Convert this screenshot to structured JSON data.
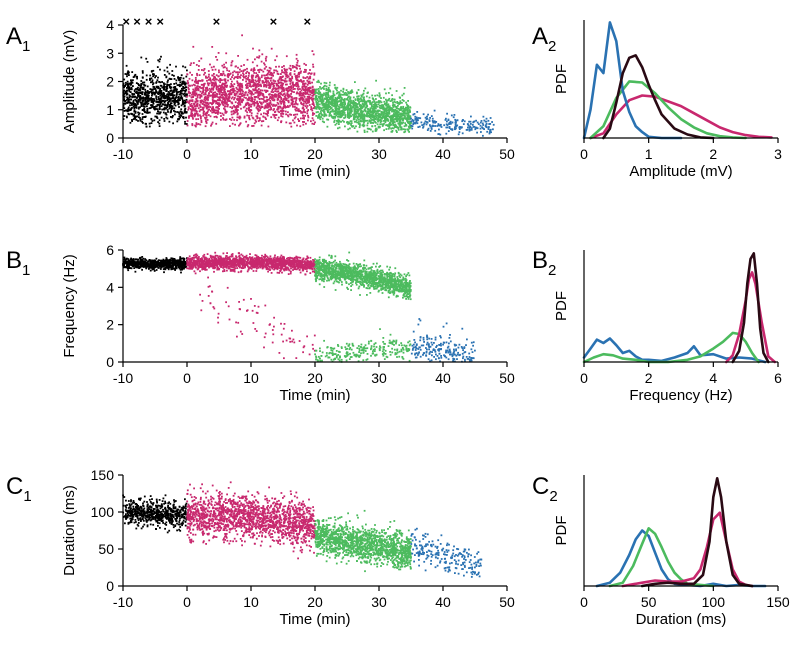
{
  "colors": {
    "baseline": "#000000",
    "epoch1": "#c8286e",
    "epoch2": "#4cbb5e",
    "epoch3": "#2a72b2",
    "pdf_dark": "#2a0a14"
  },
  "chart_data": [
    {
      "id": "A1",
      "type": "scatter",
      "panel_label": "A",
      "panel_sub": "1",
      "xlabel": "Time (min)",
      "ylabel": "Amplitude (mV)",
      "xlim": [
        -10,
        50
      ],
      "ylim": [
        0,
        4
      ],
      "xticks": [
        -10,
        0,
        10,
        20,
        30,
        40,
        50
      ],
      "xtick_labels": [
        "-10",
        "0",
        "10",
        "20",
        "30",
        "40",
        "50"
      ],
      "yticks": [
        0,
        1,
        2,
        3,
        4
      ],
      "ytick_labels": [
        "0",
        "1",
        "2",
        "3",
        "4"
      ],
      "series": [
        {
          "name": "baseline",
          "color": "baseline",
          "t": [
            -10,
            0
          ],
          "count": 900,
          "centre": [
            [
              -10,
              1.45
            ],
            [
              0,
              1.45
            ]
          ],
          "spread": 0.45,
          "range": [
            0.4,
            4.0
          ]
        },
        {
          "name": "epoch1",
          "color": "epoch1",
          "t": [
            0,
            20
          ],
          "count": 1900,
          "centre": [
            [
              0,
              1.3
            ],
            [
              6,
              1.55
            ],
            [
              12,
              1.6
            ],
            [
              20,
              1.55
            ]
          ],
          "spread": 0.55,
          "range": [
            0.4,
            4.0
          ]
        },
        {
          "name": "epoch2",
          "color": "epoch2",
          "t": [
            20,
            35
          ],
          "count": 1500,
          "centre": [
            [
              20,
              1.3
            ],
            [
              27,
              0.95
            ],
            [
              35,
              0.7
            ]
          ],
          "spread": 0.32,
          "range": [
            0.2,
            3.2
          ]
        },
        {
          "name": "epoch3",
          "color": "epoch3",
          "t": [
            35,
            48
          ],
          "count": 220,
          "centre": [
            [
              35,
              0.6
            ],
            [
              40,
              0.45
            ],
            [
              48,
              0.35
            ]
          ],
          "spread": 0.18,
          "range": [
            0.05,
            3.1
          ]
        }
      ],
      "markers": {
        "symbol": "×",
        "y": 4.1,
        "x": [
          -9.5,
          -7.8,
          -6.0,
          -4.2,
          4.6,
          13.5,
          18.8
        ]
      }
    },
    {
      "id": "B1",
      "type": "scatter",
      "panel_label": "B",
      "panel_sub": "1",
      "xlabel": "Time (min)",
      "ylabel": "Frequency (Hz)",
      "xlim": [
        -10,
        50
      ],
      "ylim": [
        0,
        6
      ],
      "xticks": [
        -10,
        0,
        10,
        20,
        30,
        40,
        50
      ],
      "xtick_labels": [
        "-10",
        "0",
        "10",
        "20",
        "30",
        "40",
        "50"
      ],
      "yticks": [
        0,
        2,
        4,
        6
      ],
      "ytick_labels": [
        "0",
        "2",
        "4",
        "6"
      ],
      "series": [
        {
          "name": "baseline",
          "color": "baseline",
          "t": [
            -10,
            0
          ],
          "count": 700,
          "centre": [
            [
              -10,
              5.25
            ],
            [
              0,
              5.25
            ]
          ],
          "spread": 0.14,
          "range": [
            2.3,
            5.9
          ]
        },
        {
          "name": "epoch1",
          "color": "epoch1",
          "t": [
            0,
            20
          ],
          "count": 1500,
          "centre": [
            [
              0,
              5.3
            ],
            [
              10,
              5.35
            ],
            [
              20,
              5.2
            ]
          ],
          "spread": 0.18,
          "range": [
            4.0,
            6.0
          ]
        },
        {
          "name": "epoch1-low",
          "color": "epoch1",
          "t": [
            2,
            20
          ],
          "count": 80,
          "centre": [
            [
              2,
              4.0
            ],
            [
              10,
              2.2
            ],
            [
              20,
              0.6
            ]
          ],
          "spread": 0.7,
          "range": [
            0.2,
            5.0
          ]
        },
        {
          "name": "epoch2",
          "color": "epoch2",
          "t": [
            20,
            35
          ],
          "count": 1300,
          "centre": [
            [
              20,
              5.0
            ],
            [
              28,
              4.6
            ],
            [
              35,
              3.9
            ]
          ],
          "spread": 0.3,
          "range": [
            3.0,
            6.0
          ]
        },
        {
          "name": "epoch2-low",
          "color": "epoch2",
          "t": [
            20,
            35
          ],
          "count": 250,
          "centre": [
            [
              20,
              0.3
            ],
            [
              28,
              0.55
            ],
            [
              35,
              0.8
            ]
          ],
          "spread": 0.3,
          "range": [
            0.0,
            2.5
          ]
        },
        {
          "name": "epoch3",
          "color": "epoch3",
          "t": [
            35,
            45
          ],
          "count": 220,
          "centre": [
            [
              35,
              0.9
            ],
            [
              40,
              0.6
            ],
            [
              45,
              0.2
            ]
          ],
          "spread": 0.45,
          "range": [
            0.0,
            6.0
          ]
        }
      ]
    },
    {
      "id": "C1",
      "type": "scatter",
      "panel_label": "C",
      "panel_sub": "1",
      "xlabel": "Time (min)",
      "ylabel": "Duration (ms)",
      "xlim": [
        -10,
        50
      ],
      "ylim": [
        0,
        150
      ],
      "xticks": [
        -10,
        0,
        10,
        20,
        30,
        40,
        50
      ],
      "xtick_labels": [
        "-10",
        "0",
        "10",
        "20",
        "30",
        "40",
        "50"
      ],
      "yticks": [
        0,
        50,
        100,
        150
      ],
      "ytick_labels": [
        "0",
        "50",
        "100",
        "150"
      ],
      "series": [
        {
          "name": "baseline",
          "color": "baseline",
          "t": [
            -10,
            0
          ],
          "count": 600,
          "centre": [
            [
              -10,
              100
            ],
            [
              0,
              95
            ]
          ],
          "spread": 8,
          "range": [
            15,
            125
          ]
        },
        {
          "name": "epoch1",
          "color": "epoch1",
          "t": [
            0,
            20
          ],
          "count": 1600,
          "centre": [
            [
              0,
              95
            ],
            [
              10,
              95
            ],
            [
              20,
              80
            ]
          ],
          "spread": 15,
          "range": [
            30,
            148
          ]
        },
        {
          "name": "epoch2",
          "color": "epoch2",
          "t": [
            20,
            35
          ],
          "count": 1400,
          "centre": [
            [
              20,
              68
            ],
            [
              28,
              55
            ],
            [
              35,
              45
            ]
          ],
          "spread": 12,
          "range": [
            20,
            148
          ]
        },
        {
          "name": "epoch3",
          "color": "epoch3",
          "t": [
            35,
            46
          ],
          "count": 220,
          "centre": [
            [
              35,
              55
            ],
            [
              40,
              40
            ],
            [
              46,
              25
            ]
          ],
          "spread": 12,
          "range": [
            10,
            115
          ]
        }
      ]
    },
    {
      "id": "A2",
      "type": "line",
      "panel_label": "A",
      "panel_sub": "2",
      "xlabel": "Amplitude (mV)",
      "ylabel": "PDF",
      "xlim": [
        0,
        3
      ],
      "ylim": [
        0,
        1
      ],
      "xticks": [
        0,
        1,
        2,
        3
      ],
      "xtick_labels": [
        "0",
        "1",
        "2",
        "3"
      ],
      "series": [
        {
          "name": "epoch1",
          "color": "epoch1",
          "x": [
            0.1,
            0.3,
            0.5,
            0.7,
            0.9,
            1.1,
            1.3,
            1.5,
            1.7,
            1.9,
            2.1,
            2.3,
            2.5,
            2.7,
            2.9
          ],
          "y": [
            0.0,
            0.04,
            0.2,
            0.32,
            0.36,
            0.35,
            0.31,
            0.27,
            0.21,
            0.15,
            0.09,
            0.05,
            0.025,
            0.01,
            0.005
          ]
        },
        {
          "name": "epoch2",
          "color": "epoch2",
          "x": [
            0.1,
            0.3,
            0.5,
            0.7,
            0.9,
            1.1,
            1.3,
            1.5,
            1.7,
            1.9,
            2.1,
            2.3,
            2.5
          ],
          "y": [
            0.0,
            0.1,
            0.34,
            0.48,
            0.47,
            0.38,
            0.26,
            0.16,
            0.09,
            0.04,
            0.015,
            0.005,
            0.0
          ]
        },
        {
          "name": "epoch3",
          "color": "epoch3",
          "x": [
            0.0,
            0.1,
            0.2,
            0.3,
            0.4,
            0.5,
            0.6,
            0.7,
            0.8,
            0.9,
            1.0,
            1.2,
            1.5
          ],
          "y": [
            0.0,
            0.24,
            0.62,
            0.55,
            0.98,
            0.82,
            0.4,
            0.22,
            0.1,
            0.05,
            0.01,
            0.0,
            0.0
          ]
        },
        {
          "name": "baseline",
          "color": "pdf_dark",
          "x": [
            0.3,
            0.4,
            0.5,
            0.6,
            0.7,
            0.8,
            0.9,
            1.0,
            1.1,
            1.2,
            1.4,
            1.6,
            1.8,
            2.0
          ],
          "y": [
            0.0,
            0.08,
            0.3,
            0.55,
            0.68,
            0.7,
            0.6,
            0.45,
            0.32,
            0.2,
            0.08,
            0.03,
            0.005,
            0.0
          ]
        }
      ]
    },
    {
      "id": "B2",
      "type": "line",
      "panel_label": "B",
      "panel_sub": "2",
      "xlabel": "Frequency (Hz)",
      "ylabel": "PDF",
      "xlim": [
        0,
        6
      ],
      "ylim": [
        0,
        1
      ],
      "xticks": [
        0,
        2,
        4,
        6
      ],
      "xtick_labels": [
        "0",
        "2",
        "4",
        "6"
      ],
      "series": [
        {
          "name": "epoch3",
          "color": "epoch3",
          "x": [
            0.0,
            0.2,
            0.4,
            0.6,
            0.8,
            1.0,
            1.2,
            1.4,
            1.6,
            1.8,
            2.0,
            2.4,
            2.8,
            3.2,
            3.4,
            3.6,
            4.0,
            4.4,
            4.8,
            5.2,
            5.6
          ],
          "y": [
            0.04,
            0.12,
            0.2,
            0.17,
            0.21,
            0.15,
            0.08,
            0.1,
            0.05,
            0.02,
            0.02,
            0.01,
            0.04,
            0.08,
            0.14,
            0.06,
            0.07,
            0.03,
            0.04,
            0.03,
            0.0
          ]
        },
        {
          "name": "epoch2",
          "color": "epoch2",
          "x": [
            0.0,
            0.3,
            0.6,
            0.9,
            1.2,
            1.6,
            2.0,
            2.6,
            3.2,
            3.6,
            4.0,
            4.3,
            4.6,
            4.8,
            5.0,
            5.2,
            5.4
          ],
          "y": [
            0.0,
            0.04,
            0.07,
            0.06,
            0.03,
            0.02,
            0.0,
            0.0,
            0.02,
            0.05,
            0.12,
            0.18,
            0.26,
            0.25,
            0.18,
            0.08,
            0.0
          ]
        },
        {
          "name": "epoch1",
          "color": "epoch1",
          "x": [
            4.4,
            4.6,
            4.8,
            5.0,
            5.1,
            5.2,
            5.3,
            5.5,
            5.7,
            5.9
          ],
          "y": [
            0.0,
            0.06,
            0.25,
            0.55,
            0.74,
            0.8,
            0.7,
            0.35,
            0.05,
            0.0
          ]
        },
        {
          "name": "baseline",
          "color": "pdf_dark",
          "x": [
            4.6,
            4.8,
            4.95,
            5.05,
            5.15,
            5.25,
            5.35,
            5.45,
            5.55,
            5.7
          ],
          "y": [
            0.0,
            0.1,
            0.35,
            0.7,
            0.92,
            0.97,
            0.7,
            0.3,
            0.08,
            0.0
          ]
        }
      ]
    },
    {
      "id": "C2",
      "type": "line",
      "panel_label": "C",
      "panel_sub": "2",
      "xlabel": "Duration (ms)",
      "ylabel": "PDF",
      "xlim": [
        0,
        150
      ],
      "ylim": [
        0,
        1
      ],
      "xticks": [
        0,
        50,
        100,
        150
      ],
      "xtick_labels": [
        "0",
        "50",
        "100",
        "150"
      ],
      "series": [
        {
          "name": "epoch3",
          "color": "epoch3",
          "x": [
            10,
            20,
            28,
            35,
            40,
            45,
            50,
            55,
            60,
            65,
            70,
            80,
            90,
            100,
            110,
            120,
            130,
            140
          ],
          "y": [
            0.0,
            0.03,
            0.12,
            0.28,
            0.42,
            0.5,
            0.45,
            0.3,
            0.15,
            0.06,
            0.02,
            0.01,
            0.0,
            0.02,
            0.0,
            0.01,
            0.0,
            0.0
          ]
        },
        {
          "name": "epoch2",
          "color": "epoch2",
          "x": [
            20,
            30,
            38,
            45,
            50,
            55,
            60,
            65,
            70,
            75,
            80,
            90,
            100
          ],
          "y": [
            0.0,
            0.03,
            0.18,
            0.38,
            0.52,
            0.47,
            0.35,
            0.22,
            0.12,
            0.06,
            0.02,
            0.01,
            0.0
          ]
        },
        {
          "name": "epoch1",
          "color": "epoch1",
          "x": [
            30,
            45,
            55,
            65,
            75,
            85,
            90,
            95,
            100,
            105,
            110,
            115,
            120,
            125,
            130
          ],
          "y": [
            0.0,
            0.03,
            0.05,
            0.04,
            0.04,
            0.07,
            0.15,
            0.35,
            0.6,
            0.66,
            0.4,
            0.15,
            0.04,
            0.01,
            0.0
          ]
        },
        {
          "name": "baseline",
          "color": "pdf_dark",
          "x": [
            45,
            55,
            65,
            75,
            85,
            92,
            97,
            100,
            103,
            106,
            110,
            115,
            120,
            130
          ],
          "y": [
            0.0,
            0.02,
            0.03,
            0.02,
            0.02,
            0.1,
            0.4,
            0.8,
            0.97,
            0.8,
            0.4,
            0.1,
            0.02,
            0.0
          ]
        }
      ]
    }
  ]
}
